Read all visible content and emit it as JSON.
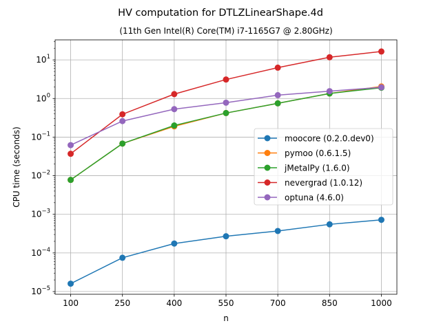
{
  "chart_data": {
    "type": "line",
    "title": "HV computation for DTLZLinearShape.4d",
    "subtitle": "(11th Gen Intel(R) Core(TM) i7-1165G7 @ 2.80GHz)",
    "xlabel": "n",
    "ylabel": "CPU time (seconds)",
    "x": [
      100,
      250,
      400,
      550,
      700,
      850,
      1000
    ],
    "xlim": [
      55,
      1045
    ],
    "ylim": [
      8.5e-06,
      33
    ],
    "yscale": "log",
    "grid": true,
    "legend_position": "center-right",
    "series": [
      {
        "name": "moocore (0.2.0.dev0)",
        "color": "#1f77b4",
        "values": [
          1.6e-05,
          7.5e-05,
          0.000175,
          0.00027,
          0.00037,
          0.00055,
          0.00072
        ]
      },
      {
        "name": "pymoo (0.6.1.5)",
        "color": "#ff7f0e",
        "values": [
          0.0078,
          0.068,
          0.19,
          0.42,
          0.75,
          1.35,
          2.05
        ]
      },
      {
        "name": "jMetalPy (1.6.0)",
        "color": "#2ca02c",
        "values": [
          0.0078,
          0.068,
          0.2,
          0.42,
          0.75,
          1.35,
          1.9
        ]
      },
      {
        "name": "nevergrad (1.0.12)",
        "color": "#d62728",
        "values": [
          0.037,
          0.39,
          1.3,
          3.1,
          6.3,
          11.7,
          16.5
        ]
      },
      {
        "name": "optuna (4.6.0)",
        "color": "#9467bd",
        "values": [
          0.062,
          0.26,
          0.53,
          0.78,
          1.22,
          1.55,
          1.95
        ]
      }
    ],
    "xticks": [
      "100",
      "250",
      "400",
      "550",
      "700",
      "850",
      "1000"
    ],
    "yticks": [
      {
        "value": 1e-05,
        "exp": "−5"
      },
      {
        "value": 0.0001,
        "exp": "−4"
      },
      {
        "value": 0.001,
        "exp": "−3"
      },
      {
        "value": 0.01,
        "exp": "−2"
      },
      {
        "value": 0.1,
        "exp": "−1"
      },
      {
        "value": 1,
        "exp": "0"
      },
      {
        "value": 10,
        "exp": "1"
      }
    ],
    "ytick_base": "10"
  }
}
